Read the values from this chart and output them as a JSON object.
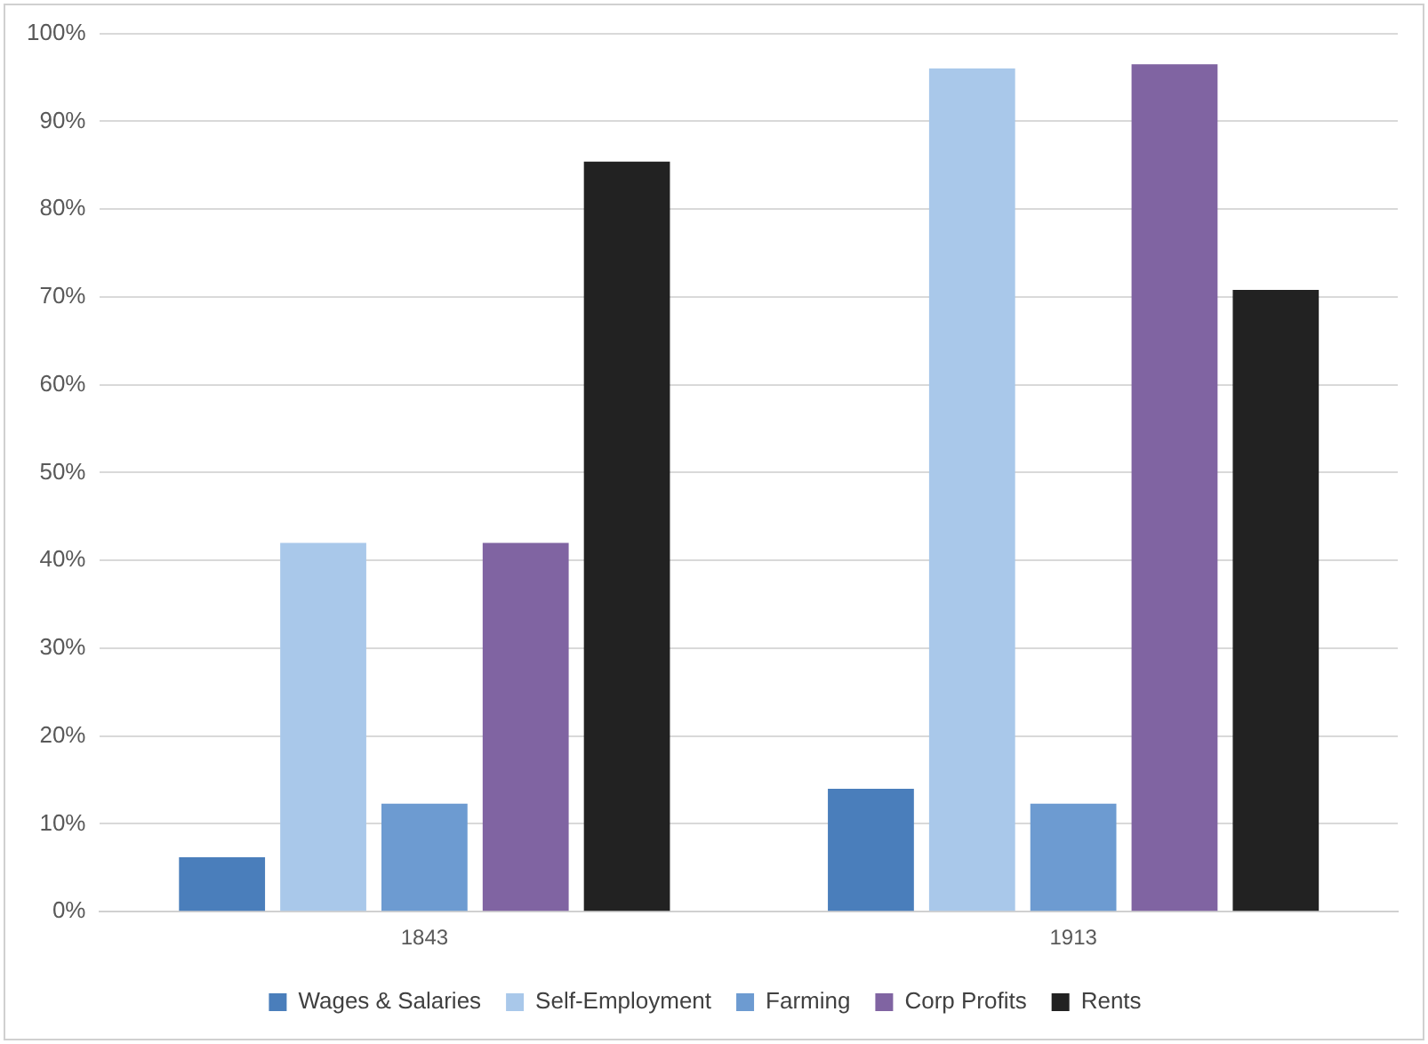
{
  "chart_data": {
    "type": "bar",
    "categories": [
      "1843",
      "1913"
    ],
    "series": [
      {
        "name": "Wages & Salaries",
        "color": "#4a7ebb",
        "values": [
          6.2,
          14
        ]
      },
      {
        "name": "Self-Employment",
        "color": "#a9c8ea",
        "values": [
          42,
          96
        ]
      },
      {
        "name": "Farming",
        "color": "#6d9bd1",
        "values": [
          12.3,
          12.3
        ]
      },
      {
        "name": "Corp Profits",
        "color": "#8064a2",
        "values": [
          42,
          96.5
        ]
      },
      {
        "name": "Rents",
        "color": "#222222",
        "values": [
          85.4,
          70.8
        ]
      }
    ],
    "ylim": [
      0,
      100
    ],
    "yticks": [
      {
        "value": 0,
        "label": "0%"
      },
      {
        "value": 10,
        "label": "10%"
      },
      {
        "value": 20,
        "label": "20%"
      },
      {
        "value": 30,
        "label": "30%"
      },
      {
        "value": 40,
        "label": "40%"
      },
      {
        "value": 50,
        "label": "50%"
      },
      {
        "value": 60,
        "label": "60%"
      },
      {
        "value": 70,
        "label": "70%"
      },
      {
        "value": 80,
        "label": "80%"
      },
      {
        "value": 90,
        "label": "90%"
      },
      {
        "value": 100,
        "label": "100%"
      }
    ],
    "grid": "y",
    "legend": "bottom"
  }
}
